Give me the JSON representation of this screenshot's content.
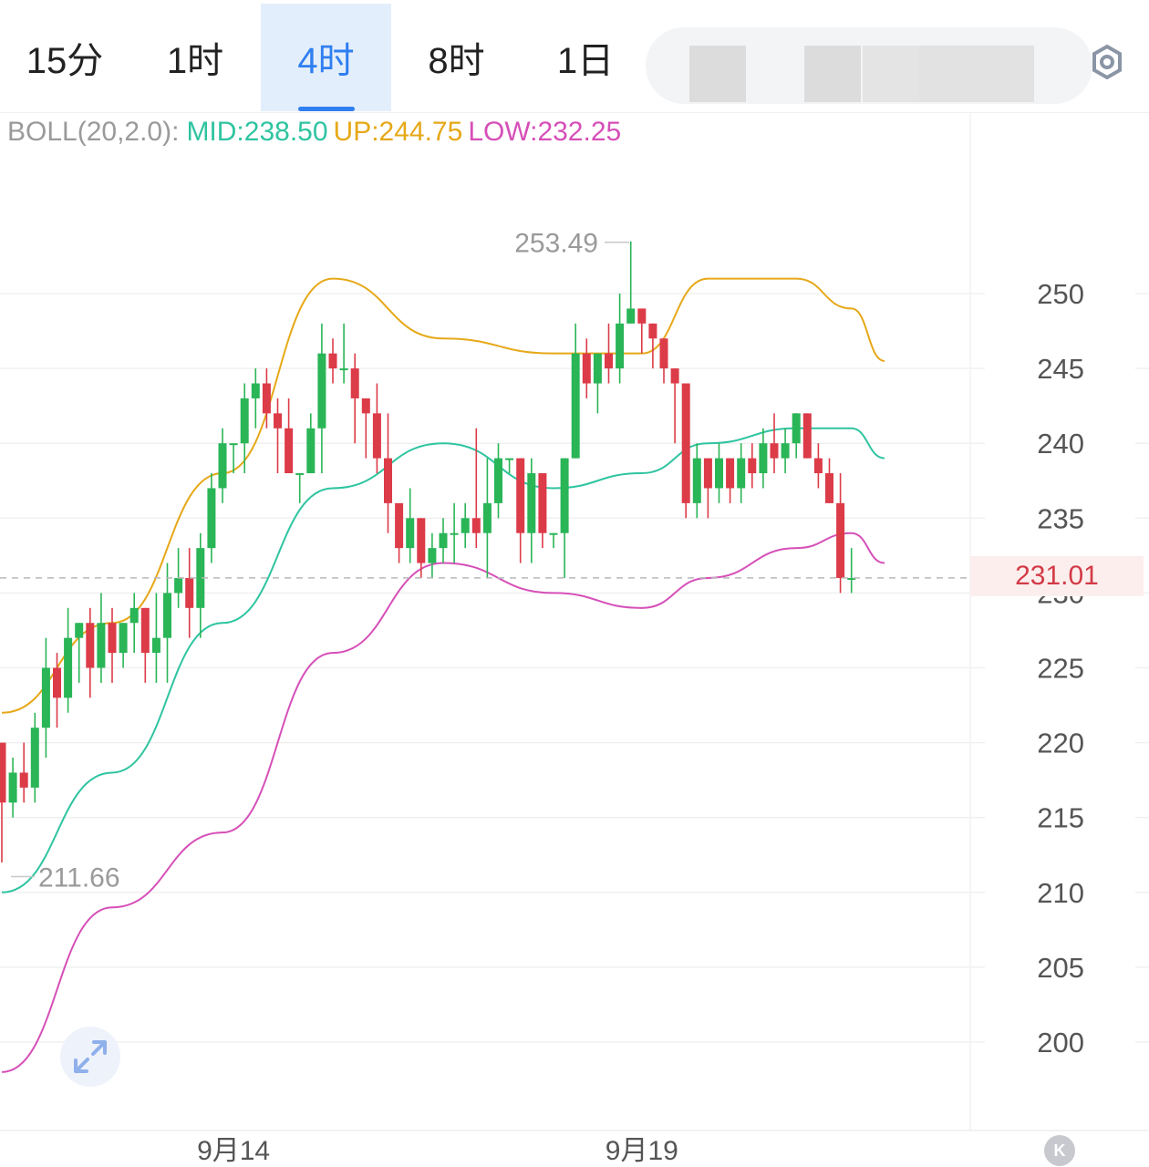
{
  "tabs": [
    {
      "label": "15分",
      "active": false
    },
    {
      "label": "1时",
      "active": false
    },
    {
      "label": "4时",
      "active": true
    },
    {
      "label": "8时",
      "active": false
    },
    {
      "label": "1日",
      "active": false
    }
  ],
  "indicator": {
    "name": "BOLL(20,2.0):",
    "mid": "MID:238.50",
    "up": "UP:244.75",
    "low": "LOW:232.25",
    "colors": {
      "name": "#9a9a9a",
      "mid": "#2ec4a0",
      "up": "#e6a817",
      "low": "#d64fb8"
    }
  },
  "current_price": "231.01",
  "high_marker": "253.49",
  "low_marker": "211.66",
  "icons": {
    "settings": "gear-icon",
    "expand": "expand-arrows-icon",
    "kline": "k-icon"
  },
  "k_button_label": "K",
  "chart_data": {
    "type": "candlestick",
    "y_ticks": [
      "250",
      "245",
      "240",
      "235",
      "230",
      "225",
      "220",
      "215",
      "210",
      "205",
      "200"
    ],
    "x_ticks": [
      {
        "label": "9月14",
        "index": 21
      },
      {
        "label": "9月19",
        "index": 58
      }
    ],
    "ylim": [
      195,
      257
    ],
    "colors": {
      "up": "#2ab557",
      "down": "#dc3b48",
      "boll_up": "#e6a817",
      "boll_mid": "#2ec4a0",
      "boll_low": "#d64fb8"
    },
    "candles": [
      [
        220,
        216,
        220,
        212
      ],
      [
        216,
        218,
        219,
        215
      ],
      [
        218,
        217,
        220,
        216
      ],
      [
        217,
        221,
        222,
        216
      ],
      [
        221,
        225,
        227,
        219
      ],
      [
        225,
        223,
        226,
        221
      ],
      [
        223,
        227,
        229,
        222
      ],
      [
        227,
        228,
        228,
        224
      ],
      [
        228,
        225,
        229,
        223
      ],
      [
        225,
        228,
        230,
        224
      ],
      [
        228,
        226,
        229,
        224
      ],
      [
        226,
        228,
        228,
        225
      ],
      [
        228,
        229,
        230,
        226
      ],
      [
        229,
        226,
        229,
        224
      ],
      [
        226,
        227,
        230,
        224
      ],
      [
        227,
        230,
        232,
        224
      ],
      [
        230,
        231,
        233,
        229
      ],
      [
        231,
        229,
        233,
        227
      ],
      [
        229,
        233,
        234,
        227
      ],
      [
        233,
        237,
        238,
        232
      ],
      [
        237,
        240,
        241,
        236
      ],
      [
        240,
        240,
        240,
        238
      ],
      [
        240,
        243,
        244,
        238
      ],
      [
        243,
        244,
        245,
        241
      ],
      [
        244,
        242,
        245,
        241
      ],
      [
        242,
        241,
        243,
        238
      ],
      [
        241,
        238,
        243,
        239
      ],
      [
        238,
        238,
        238,
        236
      ],
      [
        238,
        241,
        242,
        238
      ],
      [
        241,
        246,
        248,
        238
      ],
      [
        246,
        245,
        247,
        244
      ],
      [
        245,
        245,
        248,
        244
      ],
      [
        245,
        243,
        246,
        240
      ],
      [
        243,
        242,
        243,
        239
      ],
      [
        242,
        239,
        244,
        238
      ],
      [
        239,
        236,
        242,
        234
      ],
      [
        236,
        233,
        235,
        232
      ],
      [
        233,
        235,
        237,
        232
      ],
      [
        235,
        232,
        235,
        231
      ],
      [
        232,
        233,
        234,
        231
      ],
      [
        233,
        234,
        235,
        232
      ],
      [
        234,
        234,
        236,
        232
      ],
      [
        234,
        235,
        236,
        233
      ],
      [
        235,
        234,
        241,
        233
      ],
      [
        234,
        236,
        239,
        231
      ],
      [
        236,
        239,
        240,
        235
      ],
      [
        239,
        239,
        239,
        238
      ],
      [
        239,
        234,
        239,
        232
      ],
      [
        234,
        238,
        239,
        232
      ],
      [
        238,
        234,
        238,
        233
      ],
      [
        234,
        234,
        234,
        233
      ],
      [
        234,
        239,
        239,
        231
      ],
      [
        239,
        246,
        248,
        239
      ],
      [
        246,
        244,
        247,
        243
      ],
      [
        244,
        246,
        246,
        242
      ],
      [
        246,
        245,
        248,
        244
      ],
      [
        245,
        248,
        250,
        244
      ],
      [
        248,
        249,
        253.49,
        248
      ],
      [
        249,
        248,
        249,
        246
      ],
      [
        248,
        247,
        248,
        245
      ],
      [
        247,
        245,
        247,
        244
      ],
      [
        245,
        244,
        245,
        240
      ],
      [
        244,
        236,
        244,
        235
      ],
      [
        236,
        239,
        240,
        235
      ],
      [
        239,
        237,
        239,
        235
      ],
      [
        237,
        239,
        240,
        236
      ],
      [
        239,
        237,
        239,
        236
      ],
      [
        237,
        239,
        240,
        236
      ],
      [
        239,
        238,
        240,
        237
      ],
      [
        238,
        240,
        241,
        237
      ],
      [
        240,
        239,
        242,
        238
      ],
      [
        239,
        240,
        241,
        238
      ],
      [
        240,
        242,
        242,
        239
      ],
      [
        242,
        239,
        242,
        239
      ],
      [
        239,
        238,
        240,
        237
      ],
      [
        238,
        236,
        239,
        236
      ],
      [
        236,
        231,
        238,
        230
      ],
      [
        231,
        231,
        233,
        230
      ]
    ],
    "boll": {
      "up": [
        [
          0,
          222
        ],
        [
          10,
          228
        ],
        [
          20,
          238
        ],
        [
          30,
          251
        ],
        [
          40,
          247
        ],
        [
          50,
          246
        ],
        [
          58,
          246
        ],
        [
          64,
          251
        ],
        [
          72,
          251
        ],
        [
          77,
          249
        ],
        [
          80,
          245.5
        ]
      ],
      "mid": [
        [
          0,
          210
        ],
        [
          10,
          218
        ],
        [
          20,
          228
        ],
        [
          30,
          237
        ],
        [
          40,
          240
        ],
        [
          50,
          237
        ],
        [
          58,
          238
        ],
        [
          64,
          240
        ],
        [
          72,
          241
        ],
        [
          77,
          241
        ],
        [
          80,
          239
        ]
      ],
      "low": [
        [
          0,
          198
        ],
        [
          10,
          209
        ],
        [
          20,
          214
        ],
        [
          30,
          226
        ],
        [
          40,
          232
        ],
        [
          50,
          230
        ],
        [
          58,
          229
        ],
        [
          64,
          231
        ],
        [
          72,
          233
        ],
        [
          77,
          234
        ],
        [
          80,
          232
        ]
      ]
    }
  }
}
